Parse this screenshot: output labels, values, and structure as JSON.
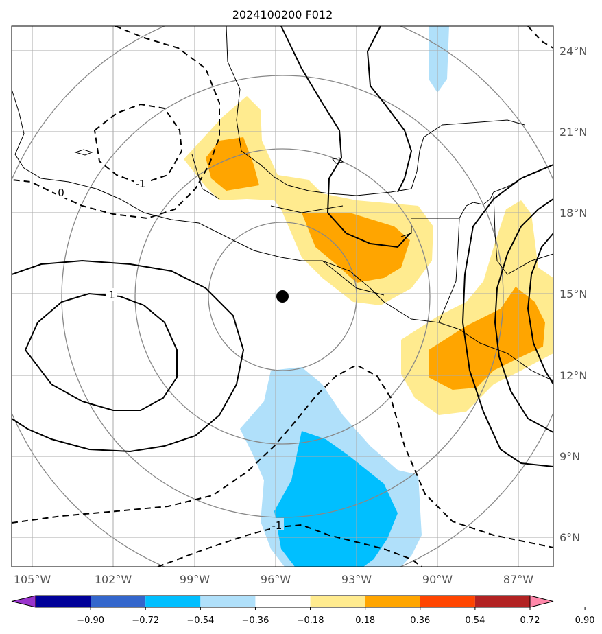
{
  "chart_data": {
    "type": "contour",
    "title": "2024100200 F012",
    "xlim": [
      -106,
      -85.5
    ],
    "ylim": [
      5,
      25
    ],
    "lon_ticks": [
      "105°W",
      "102°W",
      "99°W",
      "96°W",
      "93°W",
      "90°W",
      "87°W"
    ],
    "lat_ticks": [
      "6°N",
      "9°N",
      "12°N",
      "15°N",
      "18°N",
      "21°N",
      "24°N"
    ],
    "grid": true,
    "center_marker": {
      "lon": -95.8,
      "lat": 14.9
    },
    "colorbar": {
      "ticks": [
        "−0.90",
        "−0.72",
        "−0.54",
        "−0.36",
        "−0.18",
        "0.18",
        "0.36",
        "0.54",
        "0.72",
        "0.90"
      ],
      "colors": [
        "#9933cc",
        "#000099",
        "#3366cc",
        "#00bfff",
        "#b0e0fa",
        "#ffffff",
        "#ffeb8f",
        "#ffa500",
        "#ff4500",
        "#b22222",
        "#ff88aa"
      ]
    },
    "contour_labels": [
      "-1",
      "0",
      "1",
      "-1"
    ],
    "fill_regions": [
      {
        "name": "positive-0.18",
        "color": "#ffeb8f"
      },
      {
        "name": "positive-0.36",
        "color": "#ffa500"
      },
      {
        "name": "negative-0.18",
        "color": "#b0e0fa"
      },
      {
        "name": "negative-0.36",
        "color": "#00bfff"
      }
    ]
  }
}
